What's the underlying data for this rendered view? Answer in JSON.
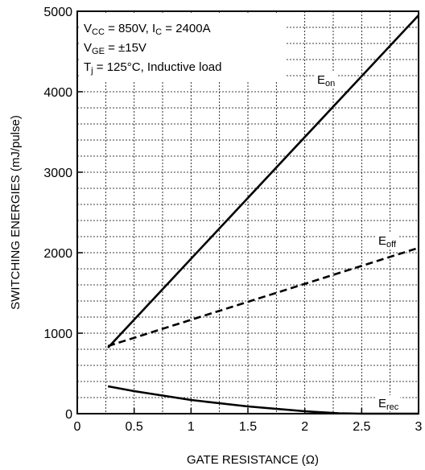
{
  "chart_data": {
    "type": "line",
    "title": "",
    "xlabel": "GATE RESISTANCE (Ω)",
    "ylabel": "SWITCHING ENERGIES (mJ/pulse)",
    "xlim": [
      0,
      3
    ],
    "ylim": [
      0,
      5000
    ],
    "x_ticks": [
      0,
      0.5,
      1,
      1.5,
      2,
      2.5,
      3
    ],
    "x_tick_labels": [
      "0",
      "0.5",
      "1",
      "1.5",
      "2",
      "2.5",
      "3"
    ],
    "y_ticks": [
      0,
      1000,
      2000,
      3000,
      4000,
      5000
    ],
    "y_tick_labels": [
      "0",
      "1000",
      "2000",
      "3000",
      "4000",
      "5000"
    ],
    "grid": true,
    "conditions": [
      {
        "main": "V",
        "sub": "CC",
        "rest": " = 850V, I",
        "sub2": "C",
        "rest2": " = 2400A"
      },
      {
        "main": "V",
        "sub": "GE",
        "rest": " = ±15V",
        "sub2": "",
        "rest2": ""
      },
      {
        "main": "T",
        "sub": "j",
        "rest": " = 125°C, Inductive load",
        "sub2": "",
        "rest2": ""
      }
    ],
    "series": [
      {
        "name": "Eon",
        "label_main": "E",
        "label_sub": "on",
        "style": "solid",
        "x": [
          0.27,
          3.0
        ],
        "y": [
          820,
          4950
        ]
      },
      {
        "name": "Eoff",
        "label_main": "E",
        "label_sub": "off",
        "style": "dashed",
        "x": [
          0.27,
          3.0
        ],
        "y": [
          840,
          2060
        ]
      },
      {
        "name": "Erec",
        "label_main": "E",
        "label_sub": "rec",
        "style": "solid",
        "x": [
          0.27,
          0.5,
          1.0,
          1.5,
          2.0,
          2.3,
          2.5,
          3.0
        ],
        "y": [
          340,
          280,
          170,
          90,
          30,
          5,
          0,
          0
        ]
      }
    ]
  }
}
